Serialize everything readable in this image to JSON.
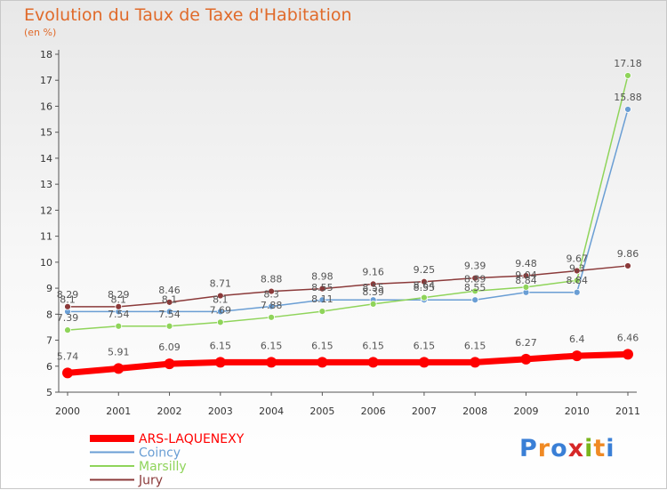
{
  "header": {
    "title": "Evolution du Taux de Taxe d'Habitation",
    "unit": "(en %)"
  },
  "logo": {
    "letters": [
      "P",
      "r",
      "o",
      "x",
      "i",
      "t",
      "i"
    ],
    "colors": [
      "#3a7fd6",
      "#f08a24",
      "#3a7fd6",
      "#d62828",
      "#7ab51d",
      "#f08a24",
      "#3a7fd6"
    ]
  },
  "chart_data": {
    "type": "line",
    "title": "Evolution du Taux de Taxe d'Habitation",
    "ylabel": "(en %)",
    "xlabel": "",
    "x": [
      "2000",
      "2001",
      "2002",
      "2003",
      "2004",
      "2005",
      "2006",
      "2007",
      "2008",
      "2009",
      "2010",
      "2011"
    ],
    "yticks": [
      "5",
      "6",
      "7",
      "8",
      "9",
      "10",
      "11",
      "12",
      "13",
      "14",
      "15",
      "16",
      "17",
      "18"
    ],
    "ylim": [
      5,
      18
    ],
    "grid": false,
    "legend": "bottom-left",
    "series": [
      {
        "name": "ARS-LAQUENEXY",
        "color": "#ff0000",
        "values": [
          5.74,
          5.91,
          6.09,
          6.15,
          6.15,
          6.15,
          6.15,
          6.15,
          6.15,
          6.27,
          6.4,
          6.46
        ],
        "labels": [
          "5.74",
          "5.91",
          "6.09",
          "6.15",
          "6.15",
          "6.15",
          "6.15",
          "6.15",
          "6.15",
          "6.27",
          "6.4",
          "6.46"
        ]
      },
      {
        "name": "Coincy",
        "color": "#6a9ed4",
        "values": [
          8.1,
          8.1,
          8.1,
          8.1,
          8.3,
          8.55,
          8.55,
          8.55,
          8.55,
          8.84,
          8.84,
          15.88
        ],
        "labels": [
          "8.1",
          "8.1",
          "8.1",
          "8.1",
          "8.3",
          "8.55",
          "8.55",
          "8.55",
          "8.55",
          "8.84",
          "8.84",
          "15.88"
        ]
      },
      {
        "name": "Marsilly",
        "color": "#8fd45a",
        "values": [
          7.39,
          7.54,
          7.54,
          7.69,
          7.88,
          8.11,
          8.39,
          8.64,
          8.89,
          9.04,
          9.3,
          17.18
        ],
        "labels": [
          "7.39",
          "7.54",
          "7.54",
          "7.69",
          "7.88",
          "8.11",
          "8.39",
          "8.64",
          "8.89",
          "9.04",
          "9.3",
          "17.18"
        ]
      },
      {
        "name": "Jury",
        "color": "#8b3a3a",
        "values": [
          8.29,
          8.29,
          8.46,
          8.71,
          8.88,
          8.98,
          9.16,
          9.25,
          9.39,
          9.48,
          9.67,
          9.86
        ],
        "labels": [
          "8.29",
          "8.29",
          "8.46",
          "8.71",
          "8.88",
          "8.98",
          "9.16",
          "9.25",
          "9.39",
          "9.48",
          "9.67",
          "9.86"
        ]
      }
    ]
  }
}
